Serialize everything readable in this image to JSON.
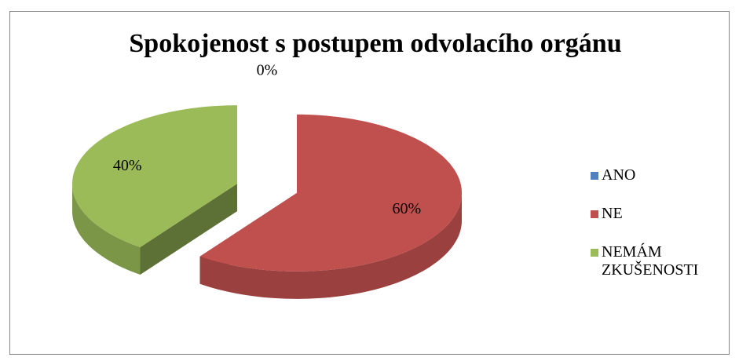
{
  "chart_data": {
    "type": "pie",
    "title": "Spokojenost s postupem odvolacího orgánu",
    "categories": [
      "ANO",
      "NE",
      "NEMÁM ZKUŠENOSTI"
    ],
    "values": [
      0,
      60,
      40
    ],
    "value_labels": [
      "0%",
      "60%",
      "40%"
    ],
    "colors": [
      "#4f81bd",
      "#c0504d",
      "#9bbb59"
    ]
  }
}
